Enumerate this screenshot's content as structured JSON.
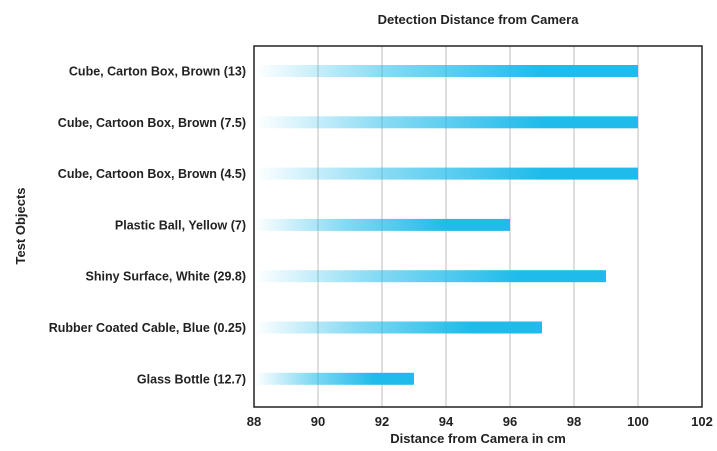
{
  "chart_data": {
    "type": "bar",
    "orientation": "horizontal",
    "title": "Detection Distance from Camera",
    "xlabel": "Distance from Camera in cm",
    "ylabel": "Test Objects",
    "categories": [
      "Cube, Carton Box, Brown (13)",
      "Cube, Cartoon Box, Brown (7.5)",
      "Cube, Cartoon Box, Brown (4.5)",
      "Plastic Ball, Yellow (7)",
      "Shiny Surface, White (29.8)",
      "Rubber Coated Cable, Blue (0.25)",
      "Glass Bottle (12.7)"
    ],
    "values": [
      100,
      100,
      100,
      96,
      99,
      97,
      93
    ],
    "xlim": [
      88,
      102
    ],
    "xticks": [
      "88",
      "90",
      "92",
      "94",
      "96",
      "98",
      "100",
      "102"
    ],
    "grid": "vertical",
    "bar_color": "#1fbbea",
    "bar_style": "gradient fading to white at left"
  }
}
